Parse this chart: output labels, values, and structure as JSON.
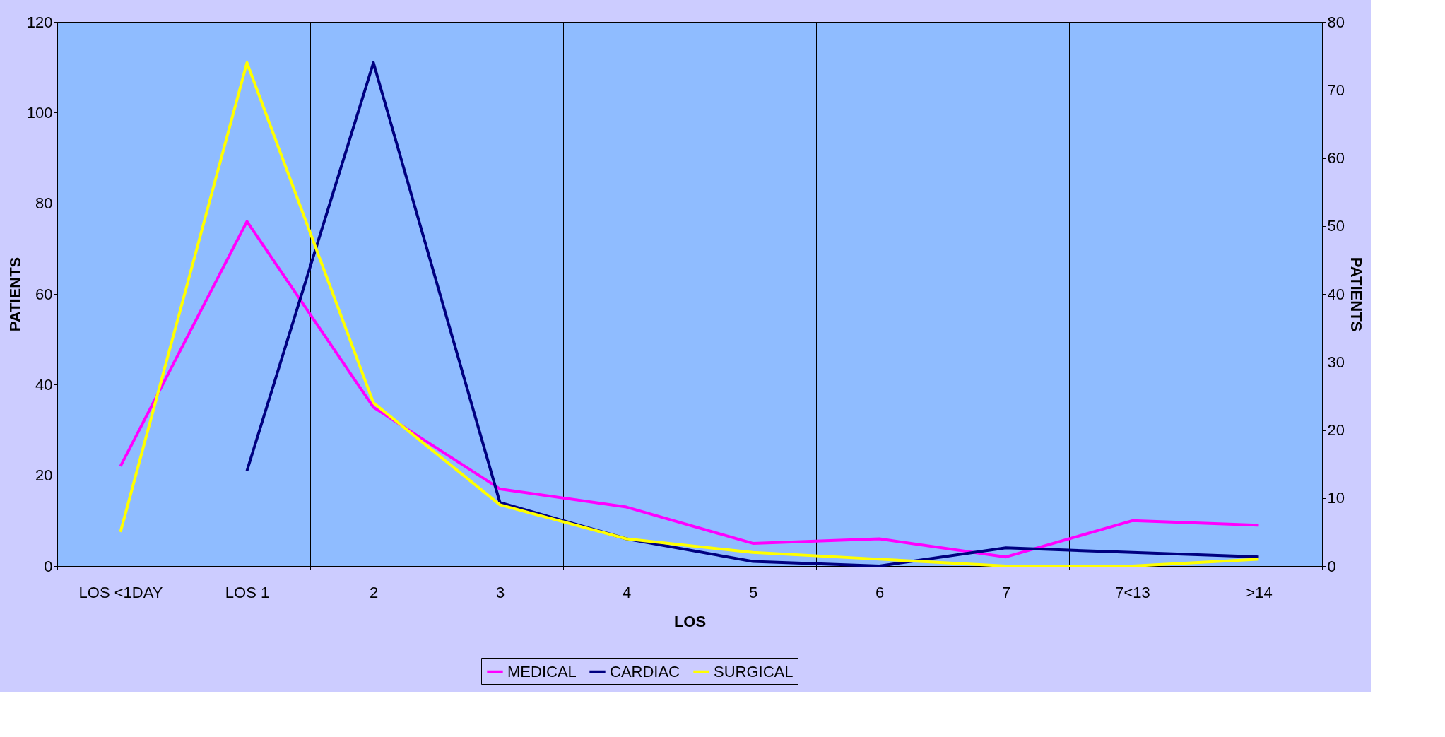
{
  "chart_data": {
    "type": "line",
    "xlabel": "LOS",
    "ylabel": "PATIENTS",
    "y2label": "PATIENTS",
    "categories": [
      "LOS <1DAY",
      "LOS 1",
      "2",
      "3",
      "4",
      "5",
      "6",
      "7",
      "7<13",
      ">14"
    ],
    "series": [
      {
        "name": "MEDICAL",
        "color": "#ff00ff",
        "values": [
          22,
          76,
          35,
          17,
          13,
          5,
          6,
          2,
          10,
          9
        ]
      },
      {
        "name": "CARDIAC",
        "color": "#000080",
        "values": [
          null,
          21,
          111,
          14,
          6,
          1,
          0,
          4,
          3,
          2
        ]
      },
      {
        "name": "SURGICAL",
        "color": "#ffff00",
        "values": [
          7.5,
          111,
          36,
          13.5,
          6,
          3,
          1.5,
          0,
          0,
          1.5
        ]
      }
    ],
    "ylim": [
      0,
      120
    ],
    "yticks": [
      0,
      20,
      40,
      60,
      80,
      100,
      120
    ],
    "y2lim": [
      0,
      80
    ],
    "y2ticks": [
      0,
      10,
      20,
      30,
      40,
      50,
      60,
      70,
      80
    ],
    "grid": "x",
    "legend": "bottom",
    "marker": "none",
    "line_style": "solid"
  }
}
